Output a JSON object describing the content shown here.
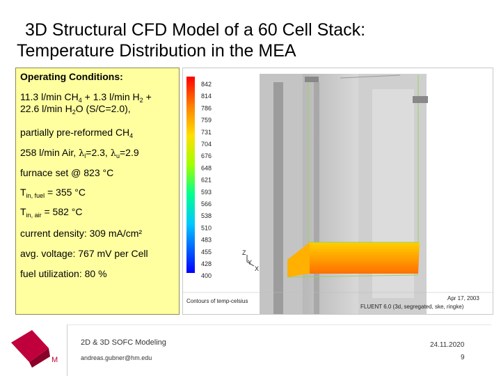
{
  "title": {
    "line1": "3D Structural CFD Model of a 60 Cell Stack:",
    "line2": "Temperature Distribution in the MEA"
  },
  "conditions": {
    "header": "Operating Conditions:",
    "feed_a": "11.3 l/min CH",
    "feed_a_sub": "4",
    "feed_b": " + 1.3 l/min H",
    "feed_b_sub": "2",
    "feed_c": " +",
    "feed_d": "22.6 l/min H",
    "feed_d_sub": "2",
    "feed_e": "O  (S/C=2.0),",
    "reform_a": "partially pre-reformed CH",
    "reform_a_sub": "4",
    "air_a": "258 l/min Air, ",
    "air_lambda1": "λ",
    "air_lambda1_sub": "l",
    "air_b": "=2.3, ",
    "air_lambda2": "λ",
    "air_lambda2_sub": "u",
    "air_c": "=2.9",
    "furnace": "furnace set @ 823 °C",
    "tfuel_a": "T",
    "tfuel_sub": "in, fuel",
    "tfuel_b": " = 355 °C",
    "tair_a": "T",
    "tair_sub": "in, air",
    "tair_b": " = 582 °C",
    "current": "current density: 309 mA/cm²",
    "voltage": "avg. voltage: 767 mV per Cell",
    "utilization": "fuel utilization: 80 %"
  },
  "figure": {
    "colorbar_labels": [
      "842",
      "814",
      "786",
      "759",
      "731",
      "704",
      "676",
      "648",
      "621",
      "593",
      "566",
      "538",
      "510",
      "483",
      "455",
      "428",
      "400"
    ],
    "colorbar_colors": [
      "#ff0000",
      "#ff3000",
      "#ff6000",
      "#ff9000",
      "#ffb800",
      "#ffe000",
      "#e8ff00",
      "#b8ff00",
      "#80ff20",
      "#40ff60",
      "#00ff90",
      "#00f0c0",
      "#00d0e8",
      "#00a0ff",
      "#0070ff",
      "#0040ff",
      "#0000ff"
    ],
    "axis_z": "Z",
    "axis_y": "Y",
    "axis_x": "X",
    "caption_left": "Contours of temp-celsius",
    "caption_date": "Apr 17, 2003",
    "caption_solver": "FLUENT 6.0 (3d, segregated, ske, ringke)"
  },
  "footer": {
    "course": "2D & 3D SOFC Modeling",
    "email": "andreas.gubner@hm.edu",
    "date": "24.11.2020",
    "page": "9",
    "logo_letter": "M"
  },
  "colors": {
    "box_background": "#ffffa0",
    "logo_red": "#c0003c"
  }
}
